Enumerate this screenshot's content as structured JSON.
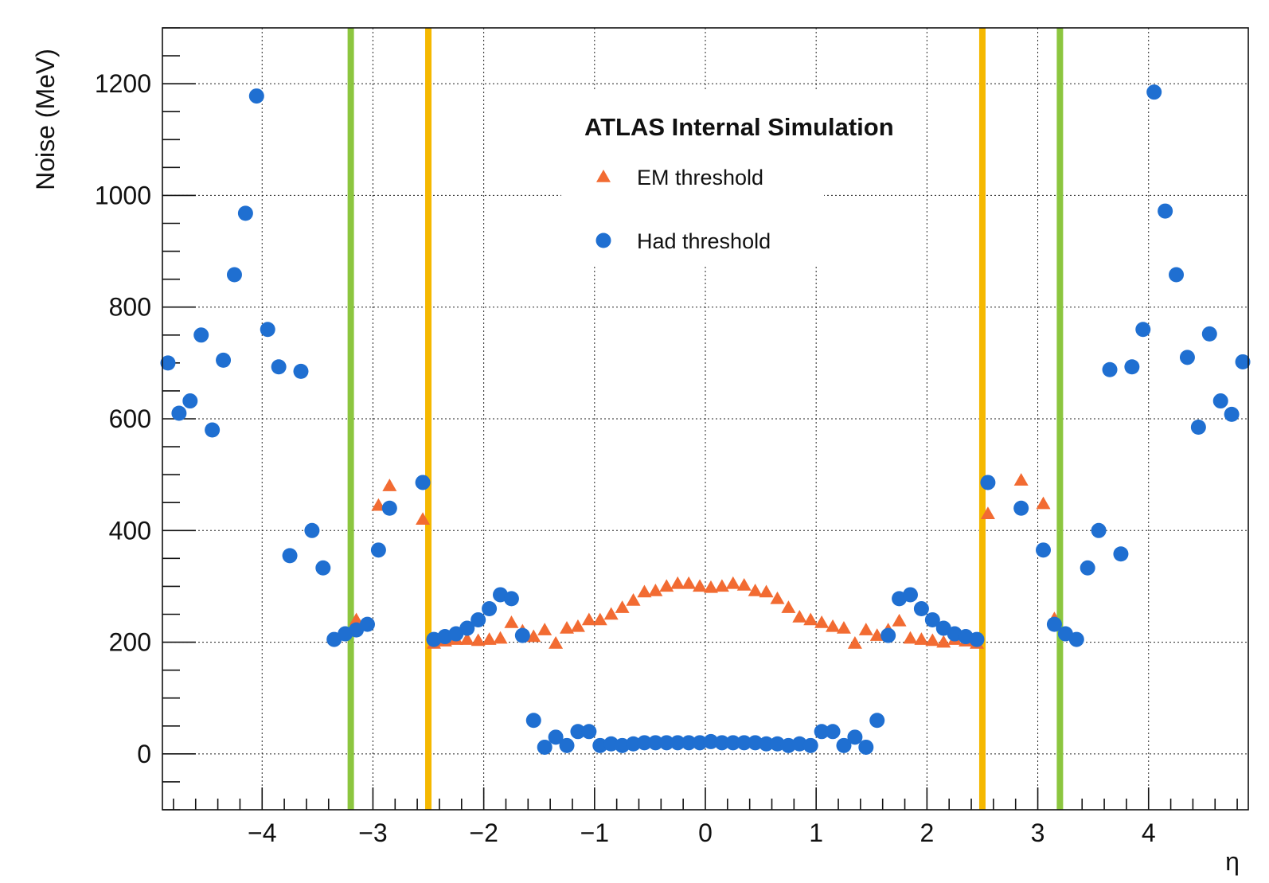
{
  "chart_data": {
    "type": "scatter",
    "title": "",
    "annotation": "ATLAS Internal Simulation",
    "xlabel": "η",
    "ylabel": "Noise (MeV)",
    "xlim": [
      -4.9,
      4.9
    ],
    "ylim": [
      -100,
      1300
    ],
    "x_ticks": [
      -4,
      -3,
      -2,
      -1,
      0,
      1,
      2,
      3,
      4
    ],
    "x_tick_labels": [
      "−4",
      "−3",
      "−2",
      "−1",
      "0",
      "1",
      "2",
      "3",
      "4"
    ],
    "y_ticks": [
      0,
      200,
      400,
      600,
      800,
      1000,
      1200
    ],
    "y_tick_labels": [
      "0",
      "200",
      "400",
      "600",
      "800",
      "1000",
      "1200"
    ],
    "grid": true,
    "legend_placement": "top-center",
    "vertical_lines": [
      {
        "x": -3.2,
        "color": "#8cc63f"
      },
      {
        "x": -2.5,
        "color": "#f5b800"
      },
      {
        "x": 2.5,
        "color": "#f5b800"
      },
      {
        "x": 3.2,
        "color": "#8cc63f"
      }
    ],
    "series": [
      {
        "name": "EM threshold",
        "marker": "triangle",
        "color": "#f26b32",
        "points": [
          [
            -3.15,
            240
          ],
          [
            -2.95,
            445
          ],
          [
            -2.85,
            480
          ],
          [
            -2.55,
            420
          ],
          [
            -2.45,
            198
          ],
          [
            -2.35,
            202
          ],
          [
            -2.25,
            205
          ],
          [
            -2.15,
            205
          ],
          [
            -2.05,
            203
          ],
          [
            -1.95,
            205
          ],
          [
            -1.85,
            207
          ],
          [
            -1.75,
            235
          ],
          [
            -1.65,
            220
          ],
          [
            -1.55,
            210
          ],
          [
            -1.45,
            222
          ],
          [
            -1.35,
            198
          ],
          [
            -1.25,
            225
          ],
          [
            -1.15,
            228
          ],
          [
            -1.05,
            240
          ],
          [
            -0.95,
            240
          ],
          [
            -0.85,
            250
          ],
          [
            -0.75,
            262
          ],
          [
            -0.65,
            275
          ],
          [
            -0.55,
            290
          ],
          [
            -0.45,
            292
          ],
          [
            -0.35,
            300
          ],
          [
            -0.25,
            305
          ],
          [
            -0.15,
            305
          ],
          [
            -0.05,
            300
          ],
          [
            0.05,
            298
          ],
          [
            0.15,
            300
          ],
          [
            0.25,
            305
          ],
          [
            0.35,
            302
          ],
          [
            0.45,
            292
          ],
          [
            0.55,
            290
          ],
          [
            0.65,
            278
          ],
          [
            0.75,
            262
          ],
          [
            0.85,
            245
          ],
          [
            0.95,
            240
          ],
          [
            1.05,
            235
          ],
          [
            1.15,
            228
          ],
          [
            1.25,
            225
          ],
          [
            1.35,
            198
          ],
          [
            1.45,
            222
          ],
          [
            1.55,
            212
          ],
          [
            1.65,
            222
          ],
          [
            1.75,
            238
          ],
          [
            1.85,
            207
          ],
          [
            1.95,
            205
          ],
          [
            2.05,
            203
          ],
          [
            2.15,
            200
          ],
          [
            2.25,
            205
          ],
          [
            2.35,
            202
          ],
          [
            2.45,
            198
          ],
          [
            2.55,
            430
          ],
          [
            2.85,
            490
          ],
          [
            3.05,
            448
          ],
          [
            3.15,
            242
          ]
        ]
      },
      {
        "name": "Had threshold",
        "marker": "circle",
        "color": "#1f6fd1",
        "points": [
          [
            -4.85,
            700
          ],
          [
            -4.75,
            610
          ],
          [
            -4.65,
            632
          ],
          [
            -4.55,
            750
          ],
          [
            -4.45,
            580
          ],
          [
            -4.35,
            705
          ],
          [
            -4.25,
            858
          ],
          [
            -4.15,
            968
          ],
          [
            -4.05,
            1178
          ],
          [
            -3.95,
            760
          ],
          [
            -3.85,
            693
          ],
          [
            -3.65,
            685
          ],
          [
            -3.75,
            355
          ],
          [
            -3.55,
            400
          ],
          [
            -3.45,
            333
          ],
          [
            -3.35,
            205
          ],
          [
            -3.25,
            215
          ],
          [
            -3.15,
            222
          ],
          [
            -3.05,
            232
          ],
          [
            -2.95,
            365
          ],
          [
            -2.85,
            440
          ],
          [
            -2.55,
            486
          ],
          [
            -2.45,
            205
          ],
          [
            -2.35,
            210
          ],
          [
            -2.25,
            215
          ],
          [
            -2.15,
            225
          ],
          [
            -2.05,
            240
          ],
          [
            -1.95,
            260
          ],
          [
            -1.85,
            285
          ],
          [
            -1.75,
            278
          ],
          [
            -1.65,
            212
          ],
          [
            -1.55,
            60
          ],
          [
            -1.45,
            12
          ],
          [
            -1.35,
            30
          ],
          [
            -1.25,
            15
          ],
          [
            -1.15,
            40
          ],
          [
            -1.05,
            40
          ],
          [
            -0.95,
            15
          ],
          [
            -0.85,
            18
          ],
          [
            -0.75,
            15
          ],
          [
            -0.65,
            18
          ],
          [
            -0.55,
            20
          ],
          [
            -0.45,
            20
          ],
          [
            -0.35,
            20
          ],
          [
            -0.25,
            20
          ],
          [
            -0.15,
            20
          ],
          [
            -0.05,
            20
          ],
          [
            0.05,
            22
          ],
          [
            0.15,
            20
          ],
          [
            0.25,
            20
          ],
          [
            0.35,
            20
          ],
          [
            0.45,
            20
          ],
          [
            0.55,
            18
          ],
          [
            0.65,
            18
          ],
          [
            0.75,
            15
          ],
          [
            0.85,
            18
          ],
          [
            0.95,
            15
          ],
          [
            1.05,
            40
          ],
          [
            1.15,
            40
          ],
          [
            1.25,
            15
          ],
          [
            1.35,
            30
          ],
          [
            1.45,
            12
          ],
          [
            1.55,
            60
          ],
          [
            1.65,
            212
          ],
          [
            1.75,
            278
          ],
          [
            1.85,
            285
          ],
          [
            1.95,
            260
          ],
          [
            2.05,
            240
          ],
          [
            2.15,
            225
          ],
          [
            2.25,
            215
          ],
          [
            2.35,
            210
          ],
          [
            2.45,
            205
          ],
          [
            2.55,
            486
          ],
          [
            2.85,
            440
          ],
          [
            3.05,
            365
          ],
          [
            3.15,
            232
          ],
          [
            3.25,
            215
          ],
          [
            3.35,
            205
          ],
          [
            3.45,
            333
          ],
          [
            3.55,
            400
          ],
          [
            3.65,
            688
          ],
          [
            3.75,
            358
          ],
          [
            3.85,
            693
          ],
          [
            3.95,
            760
          ],
          [
            4.05,
            1185
          ],
          [
            4.15,
            972
          ],
          [
            4.25,
            858
          ],
          [
            4.35,
            710
          ],
          [
            4.45,
            585
          ],
          [
            4.55,
            752
          ],
          [
            4.65,
            632
          ],
          [
            4.75,
            608
          ],
          [
            4.85,
            702
          ]
        ]
      }
    ]
  }
}
